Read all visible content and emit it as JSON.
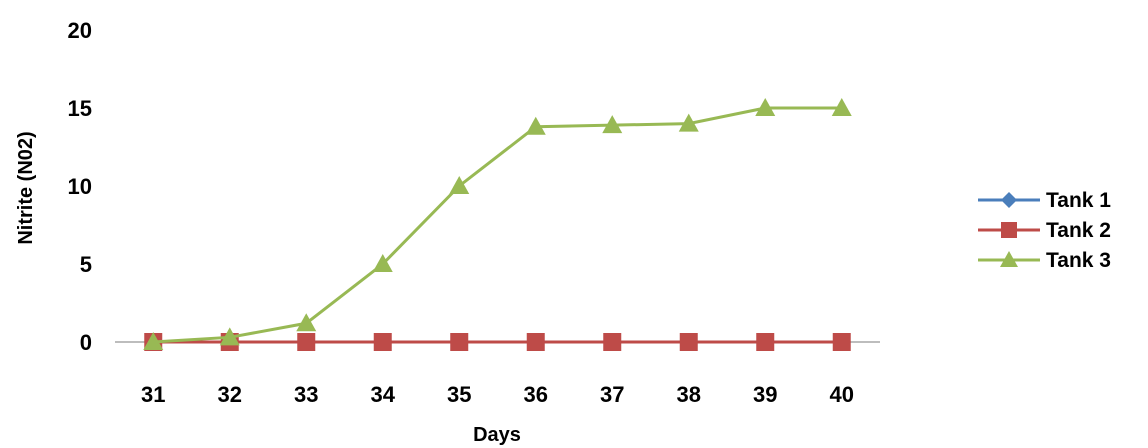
{
  "chart_data": {
    "type": "line",
    "x": [
      31,
      32,
      33,
      34,
      35,
      36,
      37,
      38,
      39,
      40
    ],
    "xlabel": "Days",
    "ylabel": "Nitrite (N02)",
    "ylim": [
      0,
      20
    ],
    "yticks": [
      0,
      5,
      10,
      15,
      20
    ],
    "grid": false,
    "legend": "right",
    "series": [
      {
        "name": "Tank 1",
        "color": "#4a7ebb",
        "marker": "diamond",
        "values": [
          0,
          0,
          0,
          0,
          0,
          0,
          0,
          0,
          0,
          0
        ]
      },
      {
        "name": "Tank 2",
        "color": "#be4b48",
        "marker": "square",
        "values": [
          0,
          0,
          0,
          0,
          0,
          0,
          0,
          0,
          0,
          0
        ]
      },
      {
        "name": "Tank 3",
        "color": "#98b954",
        "marker": "triangle",
        "values": [
          0,
          0.3,
          1.2,
          5,
          10,
          13.8,
          13.9,
          14,
          15,
          15
        ]
      }
    ]
  }
}
